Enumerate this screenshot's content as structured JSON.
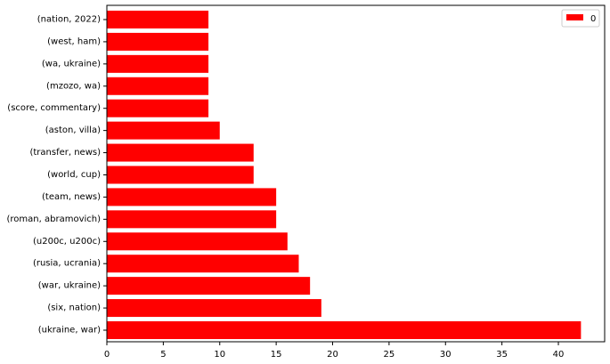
{
  "chart_data": {
    "type": "bar",
    "orientation": "horizontal",
    "categories": [
      "(ukraine, war)",
      "(six, nation)",
      "(war, ukraine)",
      "(rusia, ucrania)",
      "(u200c, u200c)",
      "(roman, abramovich)",
      "(team, news)",
      "(world, cup)",
      "(transfer, news)",
      "(aston, villa)",
      "(score, commentary)",
      "(mzozo, wa)",
      "(wa, ukraine)",
      "(west, ham)",
      "(nation, 2022)"
    ],
    "series": [
      {
        "name": "0",
        "color": "#ff0000",
        "values": [
          42,
          19,
          18,
          17,
          16,
          15,
          15,
          13,
          13,
          10,
          9,
          9,
          9,
          9,
          9
        ]
      }
    ],
    "x_ticks": [
      0,
      5,
      10,
      15,
      20,
      25,
      30,
      35,
      40
    ],
    "xlim": [
      0,
      44.1
    ],
    "title": "",
    "xlabel": "",
    "ylabel": "",
    "grid": false,
    "legend_position": "top-right"
  }
}
